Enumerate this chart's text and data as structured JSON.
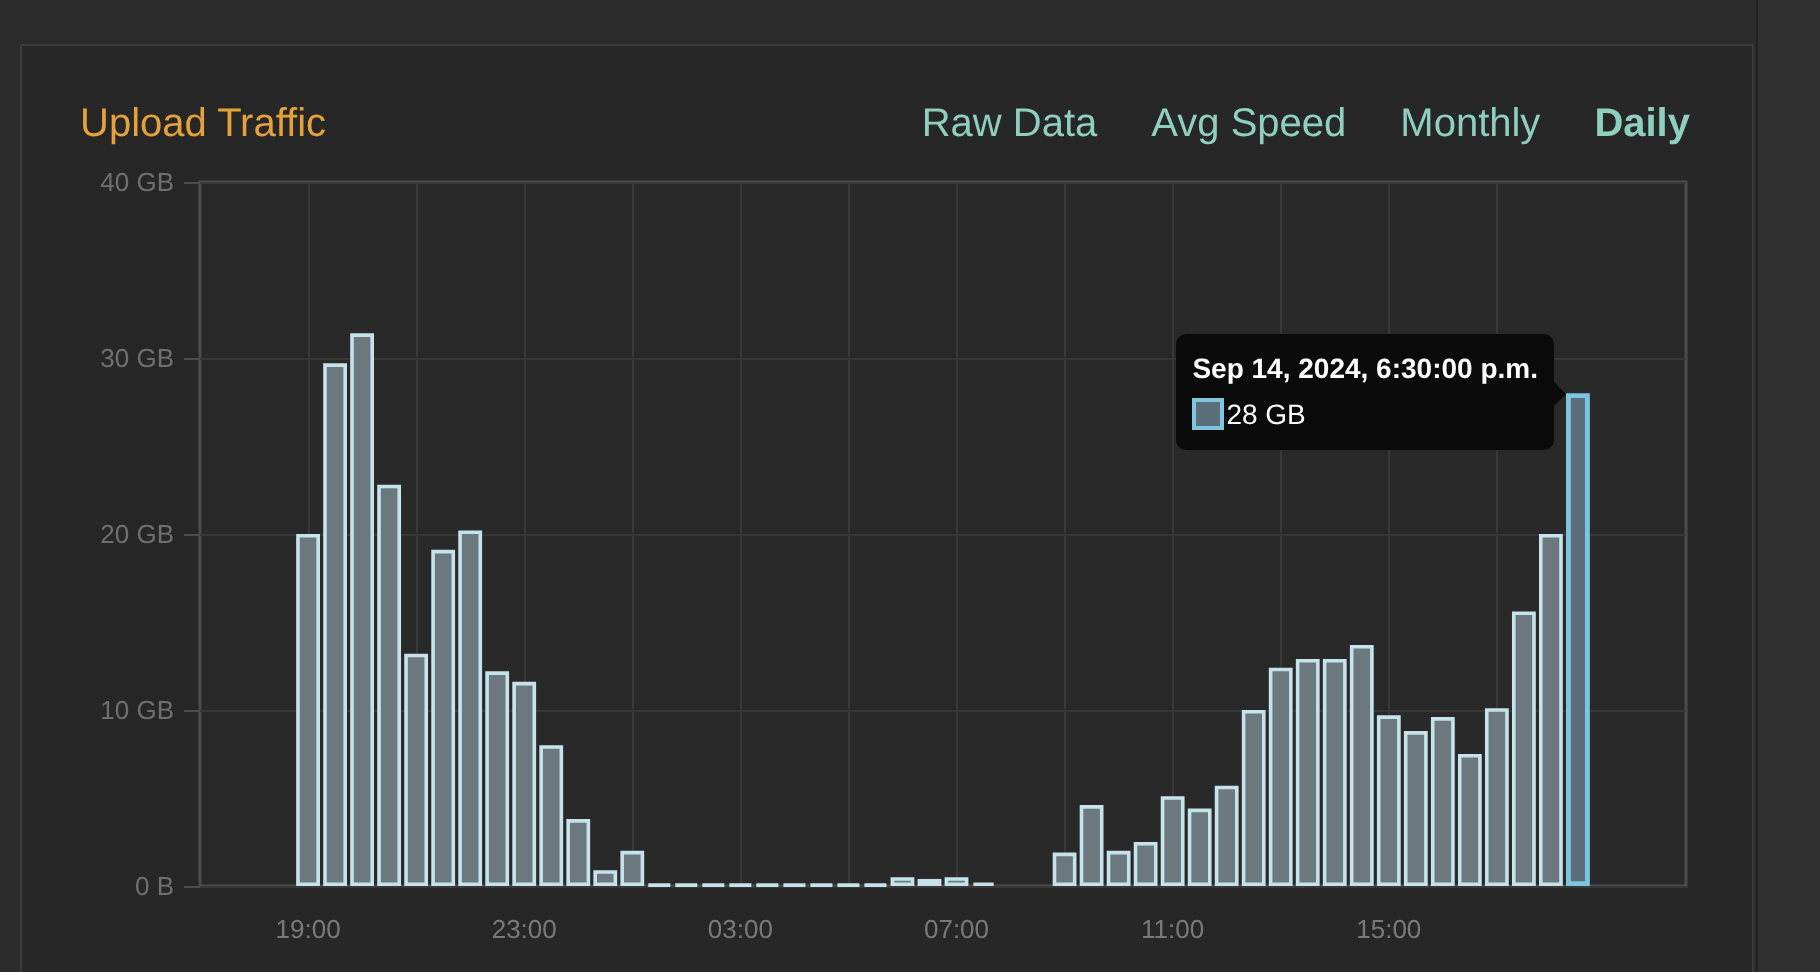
{
  "chart_data": {
    "type": "bar",
    "title": "Upload Traffic",
    "annotations": [
      "Raw Data",
      "Avg Speed",
      "Monthly",
      "Daily",
      {
        "text": "Sep 14, 2024, 6:30:00 p.m.\n28 GB",
        "x": "2024-09-14T18:30",
        "y": 28
      }
    ],
    "x": [
      "2024-09-13T19:00",
      "2024-09-13T19:30",
      "2024-09-13T20:00",
      "2024-09-13T20:30",
      "2024-09-13T21:00",
      "2024-09-13T21:30",
      "2024-09-13T22:00",
      "2024-09-13T22:30",
      "2024-09-13T23:00",
      "2024-09-13T23:30",
      "2024-09-14T00:00",
      "2024-09-14T00:30",
      "2024-09-14T01:00",
      "2024-09-14T01:30",
      "2024-09-14T02:00",
      "2024-09-14T02:30",
      "2024-09-14T03:00",
      "2024-09-14T03:30",
      "2024-09-14T04:00",
      "2024-09-14T04:30",
      "2024-09-14T05:00",
      "2024-09-14T05:30",
      "2024-09-14T06:00",
      "2024-09-14T06:30",
      "2024-09-14T07:00",
      "2024-09-14T07:30",
      "2024-09-14T08:00",
      "2024-09-14T08:30",
      "2024-09-14T09:00",
      "2024-09-14T09:30",
      "2024-09-14T10:00",
      "2024-09-14T10:30",
      "2024-09-14T11:00",
      "2024-09-14T11:30",
      "2024-09-14T12:00",
      "2024-09-14T12:30",
      "2024-09-14T13:00",
      "2024-09-14T13:30",
      "2024-09-14T14:00",
      "2024-09-14T14:30",
      "2024-09-14T15:00",
      "2024-09-14T15:30",
      "2024-09-14T16:00",
      "2024-09-14T16:30",
      "2024-09-14T17:00",
      "2024-09-14T17:30",
      "2024-09-14T18:00",
      "2024-09-14T18:30"
    ],
    "values": [
      20,
      29.7,
      31.4,
      22.8,
      13.2,
      19.1,
      20.2,
      12.2,
      11.6,
      8,
      3.8,
      0.9,
      2,
      0.1,
      0.1,
      0.1,
      0.1,
      0.1,
      0.1,
      0.1,
      0.1,
      0.1,
      0.5,
      0.4,
      0.5,
      0.2,
      0,
      0,
      1.9,
      4.6,
      2,
      2.5,
      5.1,
      4.4,
      5.7,
      10,
      12.4,
      12.9,
      12.9,
      13.7,
      9.7,
      8.8,
      9.6,
      7.5,
      10.1,
      15.6,
      20,
      28
    ],
    "colors": [
      "#6b787d",
      "#6b787d",
      "#6b787d",
      "#6b787d",
      "#6b787d",
      "#6b787d",
      "#6b787d",
      "#6b787d",
      "#6b787d",
      "#6b787d",
      "#6b787d",
      "#6b787d",
      "#6b787d",
      "#c6e3ec",
      "#c6e3ec",
      "#c6e3ec",
      "#c6e3ec",
      "#c6e3ec",
      "#c6e3ec",
      "#c6e3ec",
      "#c6e3ec",
      "#c6e3ec",
      "#6b787d",
      "#6b787d",
      "#6b787d",
      "#c6e3ec",
      "#6b787d",
      "#6b787d",
      "#6b787d",
      "#6b787d",
      "#6b787d",
      "#6b787d",
      "#6b787d",
      "#6b787d",
      "#6b787d",
      "#6b787d",
      "#6b787d",
      "#6b787d",
      "#6b787d",
      "#6b787d",
      "#6b787d",
      "#6b787d",
      "#6b787d",
      "#6b787d",
      "#6b787d",
      "#6b787d",
      "#6b787d",
      "#5a6f79"
    ],
    "xlim": [
      "2024-09-13T17:00",
      "2024-09-14T20:30"
    ],
    "xticks": [
      {
        "value": "2024-09-13T19:00",
        "label": "19:00"
      },
      {
        "value": "2024-09-13T21:00",
        "label": null
      },
      {
        "value": "2024-09-13T23:00",
        "label": "23:00"
      },
      {
        "value": "2024-09-14T01:00",
        "label": null
      },
      {
        "value": "2024-09-14T03:00",
        "label": "03:00"
      },
      {
        "value": "2024-09-14T05:00",
        "label": null
      },
      {
        "value": "2024-09-14T07:00",
        "label": "07:00"
      },
      {
        "value": "2024-09-14T09:00",
        "label": null
      },
      {
        "value": "2024-09-14T11:00",
        "label": "11:00"
      },
      {
        "value": "2024-09-14T13:00",
        "label": null
      },
      {
        "value": "2024-09-14T15:00",
        "label": "15:00"
      },
      {
        "value": "2024-09-14T17:00",
        "label": null
      }
    ],
    "ylim": [
      0,
      40
    ],
    "yticks": [
      {
        "value": 0,
        "label": "0 B"
      },
      {
        "value": 10,
        "label": "10 GB"
      },
      {
        "value": 20,
        "label": "20 GB"
      },
      {
        "value": 30,
        "label": "30 GB"
      },
      {
        "value": 40,
        "label": "40 GB"
      }
    ],
    "grid": true
  }
}
